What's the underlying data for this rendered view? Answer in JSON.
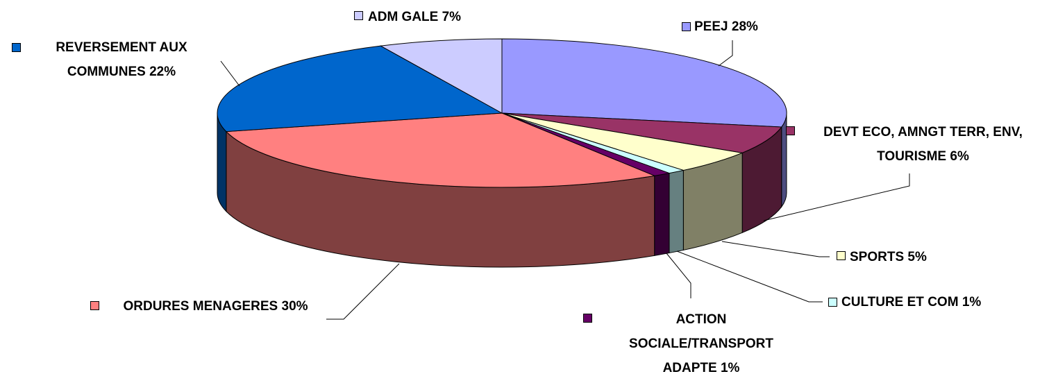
{
  "chart_data": {
    "type": "pie3d",
    "categories": [
      "PEEJ",
      "DEVT ECO, AMNGT TERR, ENV, TOURISME",
      "SPORTS",
      "CULTURE ET COM",
      "ACTION SOCIALE/TRANSPORT ADAPTE",
      "ORDURES MENAGERES",
      "REVERSEMENT AUX COMMUNES",
      "ADM GALE"
    ],
    "values": [
      28,
      6,
      5,
      1,
      1,
      30,
      22,
      7
    ],
    "value_labels": [
      "28%",
      "6%",
      "5%",
      "1%",
      "1%",
      "30%",
      "22%",
      "7%"
    ],
    "colors": [
      "#9999ff",
      "#993366",
      "#ffffcc",
      "#ccffff",
      "#660066",
      "#ff8080",
      "#0066cc",
      "#ccccff"
    ]
  }
}
